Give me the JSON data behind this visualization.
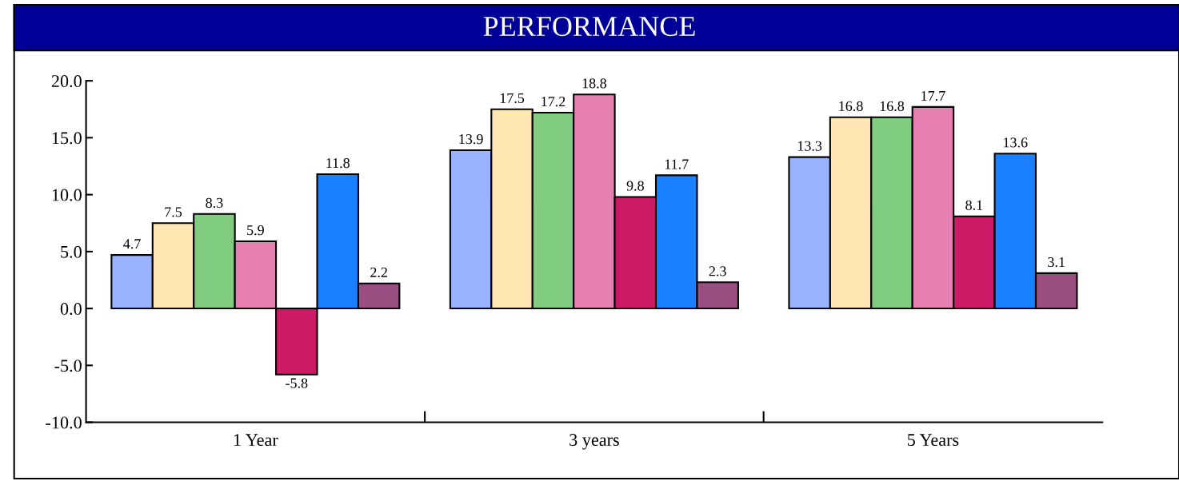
{
  "chart_data": {
    "type": "bar",
    "title": "PERFORMANCE",
    "categories": [
      "1 Year",
      "3 years",
      "5 Years"
    ],
    "series": [
      {
        "color": "#99b3ff",
        "values": [
          4.7,
          13.9,
          13.3
        ]
      },
      {
        "color": "#ffe6b3",
        "values": [
          7.5,
          17.5,
          16.8
        ]
      },
      {
        "color": "#80cc80",
        "values": [
          8.3,
          17.2,
          16.8
        ]
      },
      {
        "color": "#e680b3",
        "values": [
          5.9,
          18.8,
          17.7
        ]
      },
      {
        "color": "#cc1a66",
        "values": [
          -5.8,
          9.8,
          8.1
        ]
      },
      {
        "color": "#1a80ff",
        "values": [
          11.8,
          11.7,
          13.6
        ]
      },
      {
        "color": "#994d80",
        "values": [
          2.2,
          2.3,
          3.1
        ]
      }
    ],
    "ylim": [
      -10,
      20
    ],
    "yticks": [
      {
        "value": -10,
        "label": "-10.0"
      },
      {
        "value": -5,
        "label": "-5.0"
      },
      {
        "value": 0,
        "label": "0.0"
      },
      {
        "value": 5,
        "label": "5.0"
      },
      {
        "value": 10,
        "label": "10.0"
      },
      {
        "value": 15,
        "label": "15.0"
      },
      {
        "value": 20,
        "label": "20.0"
      }
    ],
    "data_labels": true,
    "grid": false,
    "legend": false
  }
}
